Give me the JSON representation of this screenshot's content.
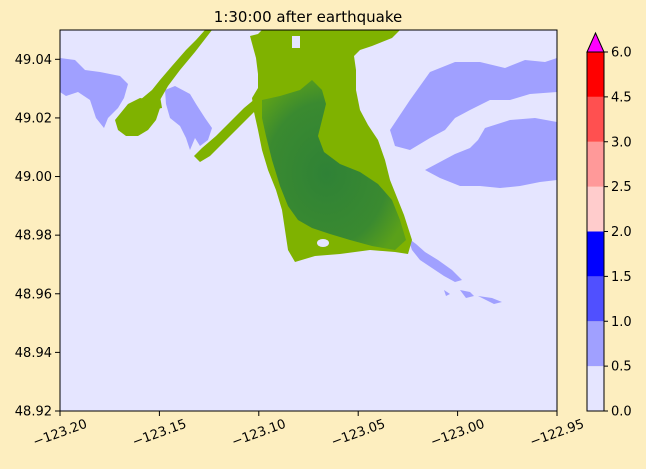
{
  "chart_data": {
    "type": "heatmap",
    "title": "1:30:00 after earthquake",
    "xlabel": "",
    "ylabel": "",
    "xlim": [
      -123.2,
      -122.95
    ],
    "ylim": [
      48.92,
      49.05
    ],
    "x_ticks": [
      "−123.20",
      "−123.15",
      "−123.10",
      "−123.05",
      "−123.00",
      "−122.95"
    ],
    "x_tick_values": [
      -123.2,
      -123.15,
      -123.1,
      -123.05,
      -123.0,
      -122.95
    ],
    "y_ticks": [
      "48.92",
      "48.94",
      "48.96",
      "48.98",
      "49.00",
      "49.02",
      "49.04"
    ],
    "y_tick_values": [
      48.92,
      48.94,
      48.96,
      48.98,
      49.0,
      49.02,
      49.04
    ],
    "colorbar": {
      "levels": [
        0.0,
        0.5,
        1.0,
        1.5,
        2.0,
        2.5,
        3.0,
        4.5,
        6.0
      ],
      "tick_labels": [
        "0.0",
        "0.5",
        "1.0",
        "1.5",
        "2.0",
        "2.5",
        "3.0",
        "4.5",
        "6.0"
      ],
      "colors": [
        "#e5e5ff",
        "#a0a0ff",
        "#5050ff",
        "#0000ff",
        "#ffcccc",
        "#ff9999",
        "#ff5050",
        "#ff0000"
      ],
      "extend_max_color": "#ff00ff",
      "extend": "max"
    },
    "colors": {
      "water_background": "#e5e5ff",
      "land_low": "#7fb200",
      "land_high": "#3a8a30",
      "inundation_shallow": "#a0a0ff"
    }
  }
}
